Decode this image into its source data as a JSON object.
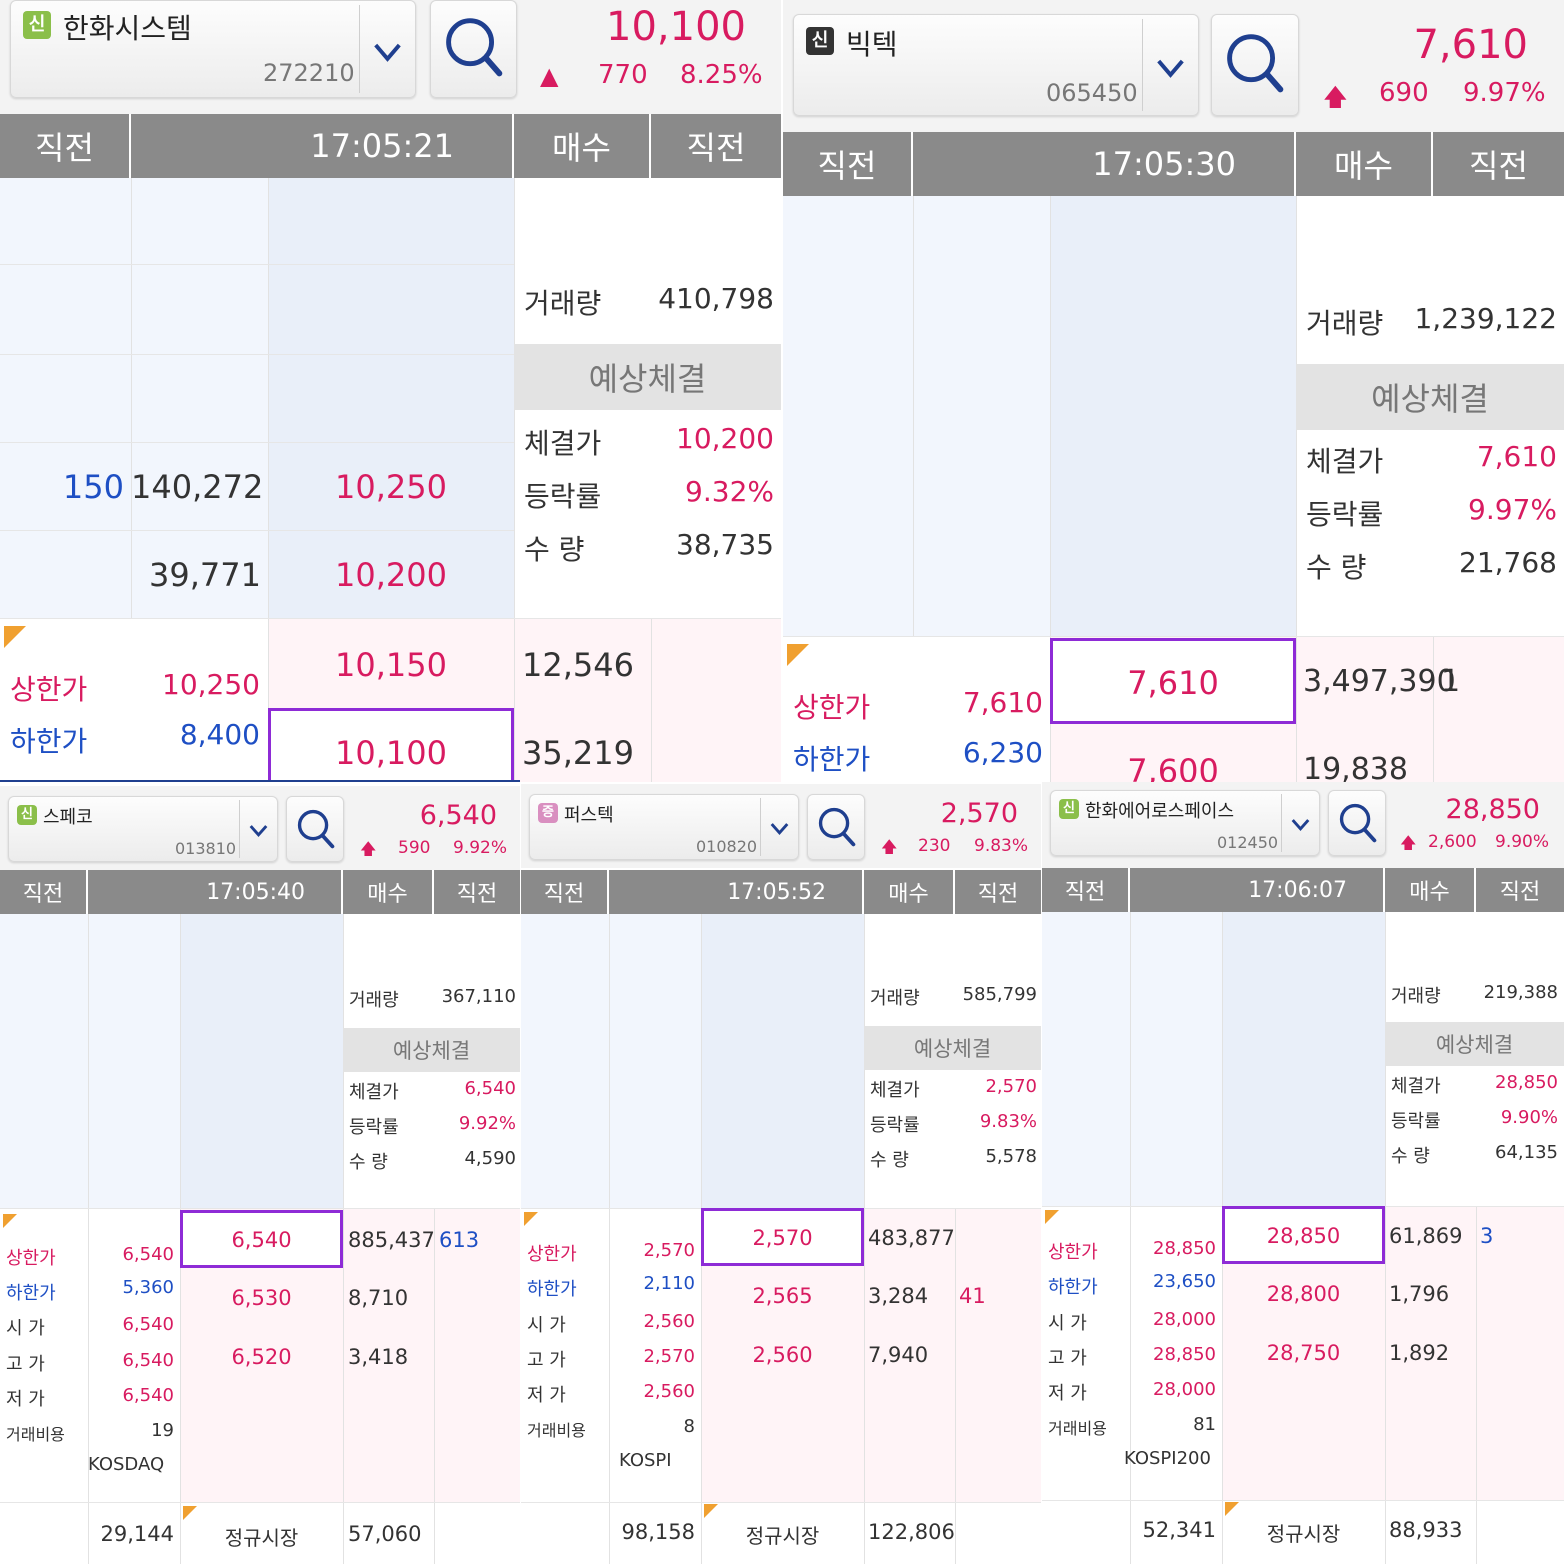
{
  "panels": [
    {
      "badge": "신",
      "name": "한화시스템",
      "code": "272210",
      "price": "10,100",
      "arrow": "▲",
      "change": "770",
      "rate": "8.25%",
      "hdr": {
        "prev": "직전",
        "time": "17:05:21",
        "bid": "매수",
        "prev2": "직전"
      },
      "volume_label": "거래량",
      "volume": "410,798",
      "exp_title": "예상체결",
      "exp_price_label": "체결가",
      "exp_price": "10,200",
      "exp_rate_label": "등락률",
      "exp_rate": "9.32%",
      "exp_qty_label": "수 량",
      "exp_qty": "38,735",
      "ask_rows": [
        {
          "prev": "150",
          "qty": "140,272",
          "price": "10,250"
        },
        {
          "prev": "",
          "qty": "39,771",
          "price": "10,200"
        }
      ],
      "bid_rows": [
        {
          "price": "10,150",
          "qty": "12,546"
        },
        {
          "price": "10,100",
          "qty": "35,219"
        }
      ],
      "limits": {
        "upper_label": "상한가",
        "upper": "10,250",
        "lower_label": "하한가",
        "lower": "8,400"
      }
    },
    {
      "badge": "신",
      "name": "빅텍",
      "code": "065450",
      "price": "7,610",
      "arrow": "🡅",
      "change": "690",
      "rate": "9.97%",
      "hdr": {
        "prev": "직전",
        "time": "17:05:30",
        "bid": "매수",
        "prev2": "직전"
      },
      "volume_label": "거래량",
      "volume": "1,239,122",
      "exp_title": "예상체결",
      "exp_price_label": "체결가",
      "exp_price": "7,610",
      "exp_rate_label": "등락률",
      "exp_rate": "9.97%",
      "exp_qty_label": "수 량",
      "exp_qty": "21,768",
      "bid_rows": [
        {
          "price": "7,610",
          "qty": "3,497,390",
          "prev": "1"
        },
        {
          "price": "7,600",
          "qty": "19,838",
          "prev": ""
        }
      ],
      "limits": {
        "upper_label": "상한가",
        "upper": "7,610",
        "lower_label": "하한가",
        "lower": "6,230"
      }
    },
    {
      "badge": "신",
      "name": "스페코",
      "code": "013810",
      "price": "6,540",
      "change": "590",
      "rate": "9.92%",
      "hdr": {
        "prev": "직전",
        "time": "17:05:40",
        "bid": "매수",
        "prev2": "직전"
      },
      "volume_label": "거래량",
      "volume": "367,110",
      "exp_title": "예상체결",
      "exp_price_label": "체결가",
      "exp_price": "6,540",
      "exp_rate_label": "등락률",
      "exp_rate": "9.92%",
      "exp_qty_label": "수 량",
      "exp_qty": "4,590",
      "bid_rows": [
        {
          "price": "6,540",
          "qty": "885,437",
          "prev": "613"
        },
        {
          "price": "6,530",
          "qty": "8,710",
          "prev": ""
        },
        {
          "price": "6,520",
          "qty": "3,418",
          "prev": ""
        }
      ],
      "info": [
        {
          "label": "상한가",
          "value": "6,540"
        },
        {
          "label": "하한가",
          "value": "5,360"
        },
        {
          "label": "시 가",
          "value": "6,540"
        },
        {
          "label": "고 가",
          "value": "6,540"
        },
        {
          "label": "저 가",
          "value": "6,540"
        },
        {
          "label": "거래비용",
          "value": "19"
        }
      ],
      "market": "KOSDAQ",
      "footer": {
        "ask_total": "29,144",
        "session": "정규시장",
        "bid_total": "57,060"
      }
    },
    {
      "badge": "증",
      "name": "퍼스텍",
      "code": "010820",
      "price": "2,570",
      "change": "230",
      "rate": "9.83%",
      "hdr": {
        "prev": "직전",
        "time": "17:05:52",
        "bid": "매수",
        "prev2": "직전"
      },
      "volume_label": "거래량",
      "volume": "585,799",
      "exp_title": "예상체결",
      "exp_price_label": "체결가",
      "exp_price": "2,570",
      "exp_rate_label": "등락률",
      "exp_rate": "9.83%",
      "exp_qty_label": "수 량",
      "exp_qty": "5,578",
      "bid_rows": [
        {
          "price": "2,570",
          "qty": "483,877",
          "prev": ""
        },
        {
          "price": "2,565",
          "qty": "3,284",
          "prev": "41"
        },
        {
          "price": "2,560",
          "qty": "7,940",
          "prev": ""
        }
      ],
      "info": [
        {
          "label": "상한가",
          "value": "2,570"
        },
        {
          "label": "하한가",
          "value": "2,110"
        },
        {
          "label": "시 가",
          "value": "2,560"
        },
        {
          "label": "고 가",
          "value": "2,570"
        },
        {
          "label": "저 가",
          "value": "2,560"
        },
        {
          "label": "거래비용",
          "value": "8"
        }
      ],
      "market": "KOSPI",
      "footer": {
        "ask_total": "98,158",
        "session": "정규시장",
        "bid_total": "122,806"
      }
    },
    {
      "badge": "신",
      "name": "한화에어로스페이스",
      "code": "012450",
      "price": "28,850",
      "change": "2,600",
      "rate": "9.90%",
      "hdr": {
        "prev": "직전",
        "time": "17:06:07",
        "bid": "매수",
        "prev2": "직전"
      },
      "volume_label": "거래량",
      "volume": "219,388",
      "exp_title": "예상체결",
      "exp_price_label": "체결가",
      "exp_price": "28,850",
      "exp_rate_label": "등락률",
      "exp_rate": "9.90%",
      "exp_qty_label": "수 량",
      "exp_qty": "64,135",
      "bid_rows": [
        {
          "price": "28,850",
          "qty": "61,869",
          "prev": "3"
        },
        {
          "price": "28,800",
          "qty": "1,796",
          "prev": ""
        },
        {
          "price": "28,750",
          "qty": "1,892",
          "prev": ""
        }
      ],
      "info": [
        {
          "label": "상한가",
          "value": "28,850"
        },
        {
          "label": "하한가",
          "value": "23,650"
        },
        {
          "label": "시 가",
          "value": "28,000"
        },
        {
          "label": "고 가",
          "value": "28,850"
        },
        {
          "label": "저 가",
          "value": "28,000"
        },
        {
          "label": "거래비용",
          "value": "81"
        }
      ],
      "market": "KOSPI200",
      "footer": {
        "ask_total": "52,341",
        "session": "정규시장",
        "bid_total": "88,933"
      }
    }
  ],
  "colors": {
    "up": "#d81b60",
    "down": "#1e4fc4",
    "header": "#8a8a8a",
    "select": "#8e2bd6",
    "badge_green": "#8bbf4a",
    "badge_dark": "#333333",
    "badge_pink": "#d98fc0"
  }
}
